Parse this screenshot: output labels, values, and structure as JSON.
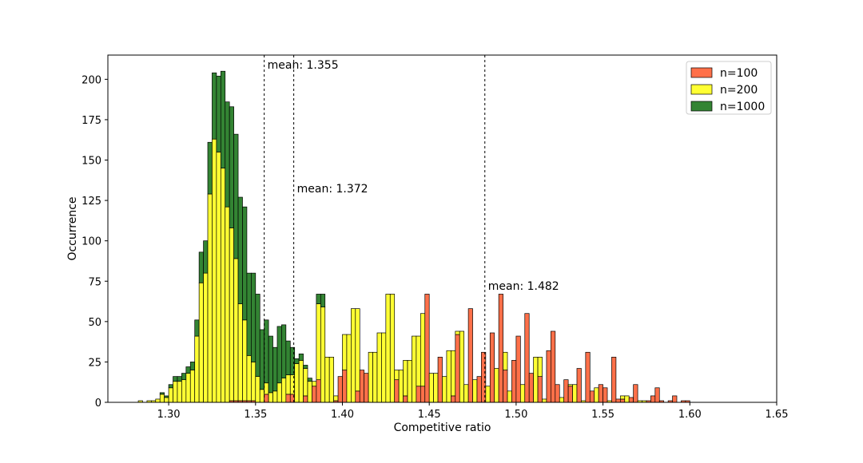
{
  "chart_data": {
    "type": "bar",
    "title": "",
    "xlabel": "Competitive ratio",
    "ylabel": "Occurrence",
    "xlim": [
      1.265,
      1.65
    ],
    "ylim": [
      0,
      215
    ],
    "xticks": [
      "1.30",
      "1.35",
      "1.40",
      "1.45",
      "1.50",
      "1.55",
      "1.60",
      "1.65"
    ],
    "yticks": [
      "0",
      "25",
      "50",
      "75",
      "100",
      "125",
      "150",
      "175",
      "200"
    ],
    "stacked": true,
    "legend": {
      "position": "top-right"
    },
    "bin_left_edges": [
      1.2825,
      1.2875,
      1.29,
      1.2925,
      1.295,
      1.2975,
      1.3,
      1.3025,
      1.305,
      1.3075,
      1.31,
      1.3125,
      1.315,
      1.3175,
      1.32,
      1.3225,
      1.325,
      1.3275,
      1.33,
      1.3325,
      1.335,
      1.3375,
      1.34,
      1.3425,
      1.345,
      1.3475,
      1.35,
      1.3525,
      1.355,
      1.3575,
      1.36,
      1.3625,
      1.365,
      1.3675,
      1.37,
      1.3725,
      1.375,
      1.3775,
      1.38,
      1.3825,
      1.385,
      1.3875,
      1.39,
      1.3925,
      1.395,
      1.3975,
      1.4,
      1.4025,
      1.405,
      1.4075,
      1.41,
      1.4125,
      1.415,
      1.4175,
      1.42,
      1.4225,
      1.425,
      1.4275,
      1.43,
      1.4325,
      1.435,
      1.4375,
      1.44,
      1.4425,
      1.445,
      1.4475,
      1.45,
      1.4525,
      1.455,
      1.4575,
      1.46,
      1.4625,
      1.465,
      1.4675,
      1.47,
      1.4725,
      1.475,
      1.4775,
      1.48,
      1.4825,
      1.485,
      1.4875,
      1.49,
      1.4925,
      1.495,
      1.4975,
      1.5,
      1.5025,
      1.505,
      1.5075,
      1.51,
      1.5125,
      1.515,
      1.5175,
      1.52,
      1.5225,
      1.525,
      1.5275,
      1.53,
      1.5325,
      1.535,
      1.5375,
      1.54,
      1.5425,
      1.545,
      1.5475,
      1.55,
      1.5525,
      1.555,
      1.5575,
      1.56,
      1.5625,
      1.565,
      1.5675,
      1.57,
      1.5725,
      1.575,
      1.5775,
      1.58,
      1.5825,
      1.585,
      1.5875,
      1.59,
      1.5925,
      1.595,
      1.5975,
      1.6,
      1.6025,
      1.605,
      1.6075,
      1.61,
      1.6125,
      1.615,
      1.6175,
      1.62,
      1.6225,
      1.625,
      1.6275
    ],
    "bin_width": 0.0025,
    "series": [
      {
        "name": "n=100",
        "color": "#ff7049",
        "values": [
          0,
          0,
          0,
          0,
          0,
          0,
          0,
          0,
          0,
          0,
          0,
          0,
          0,
          0,
          0,
          0,
          0,
          0,
          0,
          0,
          1,
          1,
          1,
          1,
          1,
          1,
          0,
          0,
          5,
          0,
          0,
          0,
          0,
          5,
          5,
          0,
          0,
          4,
          0,
          10,
          14,
          0,
          0,
          0,
          1,
          16,
          20,
          0,
          0,
          7,
          20,
          18,
          0,
          0,
          0,
          0,
          0,
          0,
          14,
          0,
          4,
          0,
          0,
          10,
          10,
          67,
          0,
          0,
          28,
          0,
          0,
          4,
          42,
          0,
          0,
          58,
          0,
          16,
          31,
          0,
          43,
          0,
          67,
          20,
          0,
          26,
          41,
          0,
          55,
          18,
          0,
          16,
          0,
          32,
          44,
          11,
          0,
          14,
          10,
          0,
          21,
          0,
          31,
          7,
          0,
          11,
          9,
          0,
          28,
          2,
          2,
          0,
          3,
          11,
          0,
          0,
          1,
          4,
          9,
          1,
          0,
          1,
          4,
          0,
          1,
          1,
          0,
          0,
          0,
          0,
          0,
          0,
          0,
          0,
          0,
          0,
          0,
          0,
          0
        ],
        "total": [
          1,
          1,
          1,
          2,
          6,
          4,
          11,
          16,
          16,
          18,
          22,
          25,
          51,
          93,
          100,
          161,
          204,
          202,
          205,
          186,
          183,
          166,
          127,
          121,
          80,
          80,
          67,
          45,
          51,
          41,
          34,
          47,
          48,
          38,
          34,
          27,
          30,
          23,
          15,
          13,
          67,
          67,
          28,
          28,
          4,
          4,
          42,
          42,
          58,
          58,
          16,
          16,
          31,
          31,
          43,
          43,
          67,
          67,
          20,
          20,
          26,
          26,
          41,
          41,
          55,
          55,
          18,
          18,
          16,
          16,
          32,
          32,
          44,
          44,
          11,
          11,
          14,
          14,
          10,
          10,
          21,
          21,
          31,
          31,
          7,
          7,
          11,
          11,
          9,
          9,
          28,
          28,
          2,
          2,
          2,
          2,
          3,
          3,
          11,
          11,
          1,
          1,
          4,
          4,
          9,
          9,
          1,
          1,
          1,
          1,
          4,
          4,
          1,
          1,
          1,
          1,
          0,
          0,
          0,
          0,
          0,
          0,
          0,
          0,
          0,
          0,
          0,
          0,
          0,
          0,
          0,
          0,
          0,
          0,
          0,
          0
        ]
      },
      {
        "name": "n=200",
        "color": "#ffff33"
      },
      {
        "name": "n=1000",
        "color": "#338433"
      }
    ],
    "annotations": [
      {
        "text": "mean: 1.355",
        "x": 1.355,
        "color": "#008000"
      },
      {
        "text": "mean: 1.372",
        "x": 1.372,
        "color": "#ccb800"
      },
      {
        "text": "mean: 1.482",
        "x": 1.482,
        "color": "#ff4f2e"
      }
    ]
  }
}
